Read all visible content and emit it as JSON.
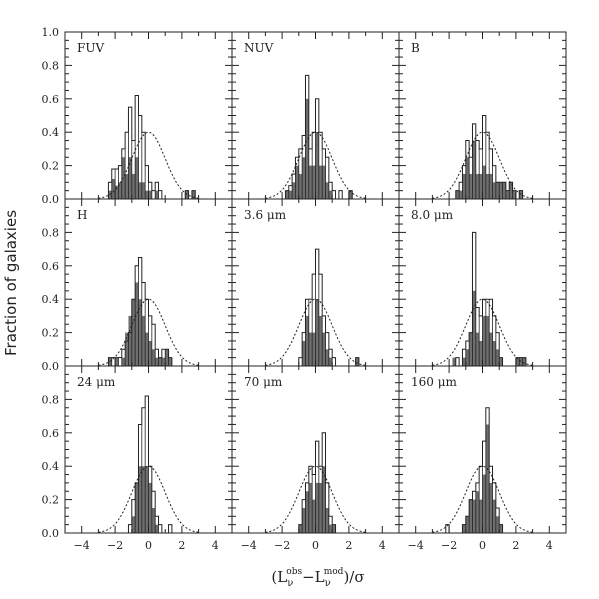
{
  "figure": {
    "ylabel": "Fraction of galaxies",
    "xlabel_parts": [
      "(L",
      "ν",
      "obs",
      "−L",
      "ν",
      "mod",
      ")/σ"
    ]
  },
  "chart_data": {
    "type": "histogram-grid",
    "x_ticks": [
      -4,
      -2,
      0,
      2,
      4
    ],
    "y_ticks": [
      0.0,
      0.2,
      0.4,
      0.6,
      0.8,
      1.0
    ],
    "y_tick_labels": [
      "0.0",
      "0.2",
      "0.4",
      "0.6",
      "0.8",
      "1.0"
    ],
    "xlim": [
      -5,
      5
    ],
    "ylim": [
      0,
      1.0
    ],
    "bin_start": -2.4,
    "bin_width": 0.2,
    "gaussian_peak": 0.4,
    "fill_color": "#6e6e6e",
    "panels": [
      {
        "label": "FUV",
        "open": [
          0.1,
          0.18,
          0.18,
          0.2,
          0.3,
          0.4,
          0.55,
          0.35,
          0.62,
          0.5,
          0.4,
          0.2,
          0.1,
          0.05,
          0.1,
          0.05,
          0.0,
          0.0,
          0.0,
          0.0,
          0.0,
          0.0,
          0.0,
          0.05,
          0.0,
          0.05
        ],
        "filled": [
          0.05,
          0.12,
          0.08,
          0.1,
          0.25,
          0.15,
          0.25,
          0.15,
          0.25,
          0.1,
          0.1,
          0.05,
          0.05,
          0.0,
          0.05,
          0.0,
          0.0,
          0.0,
          0.0,
          0.0,
          0.0,
          0.0,
          0.0,
          0.05,
          0.0,
          0.05
        ]
      },
      {
        "label": "NUV",
        "open": [
          0.0,
          0.0,
          0.0,
          0.05,
          0.08,
          0.15,
          0.25,
          0.3,
          0.38,
          0.74,
          0.3,
          0.4,
          0.6,
          0.4,
          0.3,
          0.25,
          0.1,
          0.05,
          0.0,
          0.05,
          0.0,
          0.0,
          0.05,
          0.0,
          0.0,
          0.0
        ],
        "filled": [
          0.0,
          0.0,
          0.0,
          0.05,
          0.05,
          0.1,
          0.2,
          0.15,
          0.25,
          0.6,
          0.2,
          0.2,
          0.4,
          0.2,
          0.2,
          0.1,
          0.05,
          0.0,
          0.0,
          0.0,
          0.0,
          0.0,
          0.05,
          0.0,
          0.0,
          0.0
        ],
        "gap_bins": [
          10,
          11
        ]
      },
      {
        "label": "B",
        "open": [
          0.0,
          0.0,
          0.0,
          0.0,
          0.05,
          0.1,
          0.2,
          0.35,
          0.25,
          0.45,
          0.35,
          0.3,
          0.5,
          0.4,
          0.3,
          0.2,
          0.1,
          0.1,
          0.1,
          0.05,
          0.1,
          0.05,
          0.0,
          0.05,
          0.0,
          0.0
        ],
        "filled": [
          0.0,
          0.0,
          0.0,
          0.0,
          0.05,
          0.05,
          0.15,
          0.25,
          0.15,
          0.35,
          0.15,
          0.15,
          0.2,
          0.15,
          0.15,
          0.1,
          0.1,
          0.1,
          0.1,
          0.05,
          0.1,
          0.05,
          0.0,
          0.05,
          0.0,
          0.0
        ]
      },
      {
        "label": "H",
        "open": [
          0.05,
          0.05,
          0.05,
          0.05,
          0.1,
          0.15,
          0.2,
          0.4,
          0.6,
          0.65,
          0.5,
          0.4,
          0.3,
          0.25,
          0.1,
          0.05,
          0.1,
          0.1,
          0.05,
          0.0,
          0.0,
          0.0,
          0.0,
          0.0,
          0.0,
          0.0
        ],
        "filled": [
          0.05,
          0.0,
          0.05,
          0.0,
          0.05,
          0.2,
          0.3,
          0.4,
          0.5,
          0.4,
          0.3,
          0.2,
          0.15,
          0.1,
          0.05,
          0.05,
          0.05,
          0.1,
          0.05,
          0.0,
          0.0,
          0.0,
          0.0,
          0.0,
          0.0,
          0.0
        ]
      },
      {
        "label": "3.6 μm",
        "open": [
          0.0,
          0.0,
          0.0,
          0.0,
          0.0,
          0.0,
          0.0,
          0.05,
          0.2,
          0.4,
          0.4,
          0.55,
          0.7,
          0.55,
          0.3,
          0.2,
          0.1,
          0.05,
          0.0,
          0.0,
          0.0,
          0.0,
          0.0,
          0.0,
          0.05,
          0.0
        ],
        "filled": [
          0.0,
          0.0,
          0.0,
          0.0,
          0.0,
          0.0,
          0.0,
          0.0,
          0.15,
          0.3,
          0.2,
          0.2,
          0.4,
          0.3,
          0.2,
          0.1,
          0.05,
          0.0,
          0.0,
          0.0,
          0.0,
          0.0,
          0.0,
          0.0,
          0.05,
          0.0
        ]
      },
      {
        "label": "8.0 μm",
        "open": [
          0.0,
          0.0,
          0.0,
          0.0,
          0.05,
          0.0,
          0.1,
          0.15,
          0.2,
          0.8,
          0.35,
          0.3,
          0.4,
          0.4,
          0.4,
          0.3,
          0.2,
          0.05,
          0.0,
          0.0,
          0.0,
          0.0,
          0.05,
          0.05,
          0.05,
          0.0
        ],
        "filled": [
          0.0,
          0.0,
          0.0,
          0.05,
          0.0,
          0.0,
          0.05,
          0.1,
          0.2,
          0.45,
          0.2,
          0.15,
          0.3,
          0.3,
          0.2,
          0.15,
          0.1,
          0.05,
          0.0,
          0.0,
          0.0,
          0.0,
          0.05,
          0.05,
          0.05,
          0.0
        ]
      },
      {
        "label": "24 μm",
        "open": [
          0.0,
          0.0,
          0.0,
          0.0,
          0.0,
          0.0,
          0.05,
          0.2,
          0.3,
          0.65,
          0.75,
          0.82,
          0.4,
          0.25,
          0.1,
          0.05,
          0.0,
          0.0,
          0.05,
          0.0,
          0.0,
          0.0,
          0.0,
          0.0,
          0.0,
          0.0
        ],
        "filled": [
          0.0,
          0.0,
          0.0,
          0.0,
          0.0,
          0.0,
          0.0,
          0.1,
          0.3,
          0.4,
          0.4,
          0.4,
          0.3,
          0.15,
          0.05,
          0.0,
          0.0,
          0.0,
          0.0,
          0.0,
          0.0,
          0.0,
          0.0,
          0.0,
          0.0,
          0.0
        ]
      },
      {
        "label": "70 μm",
        "open": [
          0.0,
          0.0,
          0.0,
          0.0,
          0.0,
          0.0,
          0.0,
          0.05,
          0.2,
          0.3,
          0.4,
          0.35,
          0.55,
          0.4,
          0.6,
          0.3,
          0.1,
          0.05,
          0.0,
          0.0,
          0.0,
          0.0,
          0.0,
          0.0,
          0.0,
          0.0
        ],
        "filled": [
          0.0,
          0.0,
          0.0,
          0.0,
          0.0,
          0.0,
          0.0,
          0.05,
          0.15,
          0.25,
          0.3,
          0.2,
          0.3,
          0.3,
          0.4,
          0.15,
          0.05,
          0.05,
          0.0,
          0.0,
          0.0,
          0.0,
          0.0,
          0.0,
          0.0,
          0.0
        ]
      },
      {
        "label": "160 μm",
        "open": [
          0.0,
          0.05,
          0.0,
          0.0,
          0.0,
          0.0,
          0.05,
          0.1,
          0.2,
          0.25,
          0.3,
          0.4,
          0.55,
          0.75,
          0.4,
          0.3,
          0.15,
          0.05,
          0.0,
          0.0,
          0.0,
          0.0,
          0.0,
          0.0,
          0.0,
          0.0
        ],
        "filled": [
          0.0,
          0.0,
          0.0,
          0.0,
          0.0,
          0.0,
          0.05,
          0.1,
          0.2,
          0.2,
          0.25,
          0.2,
          0.35,
          0.65,
          0.3,
          0.2,
          0.1,
          0.05,
          0.0,
          0.0,
          0.0,
          0.0,
          0.0,
          0.0,
          0.0,
          0.0
        ]
      }
    ]
  }
}
